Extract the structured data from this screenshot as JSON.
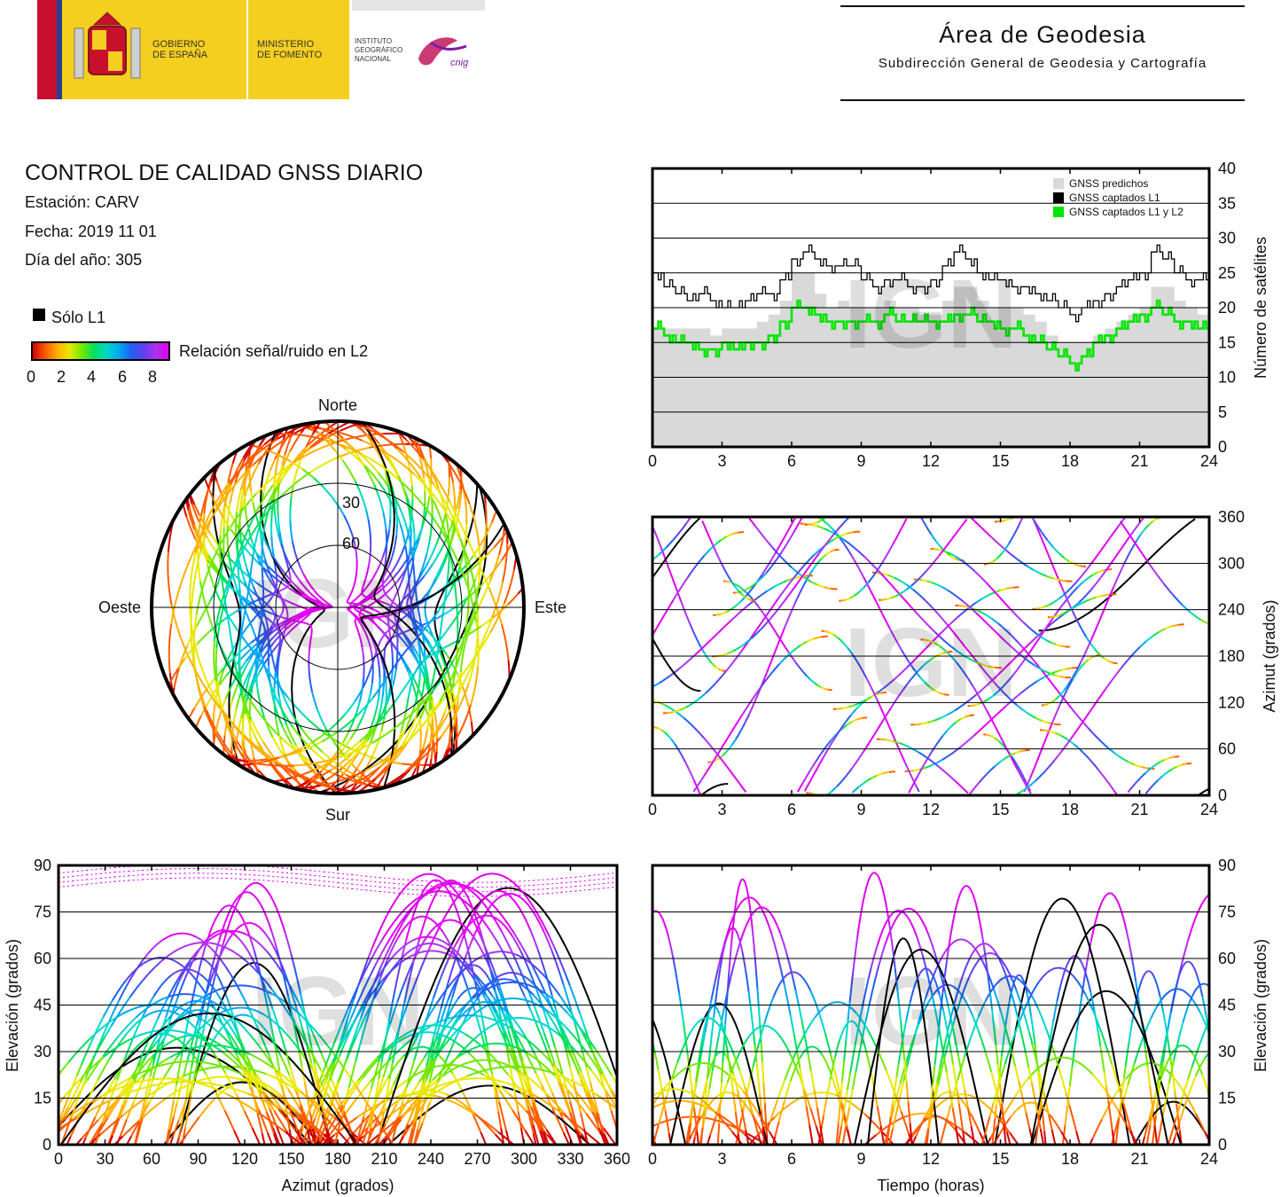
{
  "header": {
    "gobierno": "GOBIERNO\nDE ESPAÑA",
    "ministerio": "MINISTERIO\nDE FOMENTO",
    "instituto": "INSTITUTO\nGEOGRÁFICO\nNACIONAL",
    "cnig": "cnig",
    "area_title": "Área de Geodesia",
    "area_subtitle": "Subdirección General de Geodesia y Cartografía"
  },
  "info": {
    "title": "CONTROL DE CALIDAD GNSS DIARIO",
    "station": "Estación: CARV",
    "date": "Fecha: 2019 11 01",
    "doy": "Día del año: 305",
    "solo_l1": "Sólo L1",
    "colorbar_label": "Relación señal/ruido en L2",
    "colorbar_ticks": [
      "0",
      "2",
      "4",
      "6",
      "8"
    ]
  },
  "watermark": "IGN",
  "colors": {
    "predicted": "#d9d9d9",
    "captured_l1": "#000000",
    "captured_l1l2": "#00e600",
    "snr_scale": [
      "#d00000",
      "#ff5a00",
      "#ffb000",
      "#e8e800",
      "#70e800",
      "#00e060",
      "#00d8c8",
      "#00a8f0",
      "#2060f0",
      "#6040f0",
      "#b030f0",
      "#e000f0"
    ]
  },
  "chart_data": [
    {
      "type": "area",
      "legend": [
        "GNSS predichos",
        "GNSS captados L1",
        "GNSS captados L1 y L2"
      ],
      "legend_position": "top-right",
      "ylabel": "Número de satélites",
      "ylim": [
        0,
        40
      ],
      "yticks": [
        "0",
        "5",
        "10",
        "15",
        "20",
        "25",
        "30",
        "35",
        "40"
      ],
      "xlim": [
        0,
        24
      ],
      "xticks": [
        "0",
        "3",
        "6",
        "9",
        "12",
        "15",
        "18",
        "21",
        "24"
      ],
      "grid": true,
      "x": [
        0,
        0.5,
        1,
        1.5,
        2,
        2.5,
        3,
        3.5,
        4,
        4.5,
        5,
        5.5,
        6,
        6.5,
        7,
        7.5,
        8,
        8.5,
        9,
        9.5,
        10,
        10.5,
        11,
        11.5,
        12,
        12.5,
        13,
        13.5,
        14,
        14.5,
        15,
        15.5,
        16,
        16.5,
        17,
        17.5,
        18,
        18.5,
        19,
        19.5,
        20,
        20.5,
        21,
        21.5,
        22,
        22.5,
        23,
        23.5,
        24
      ],
      "series": [
        {
          "name": "GNSS predichos",
          "values": [
            17,
            17,
            17,
            17,
            17,
            16,
            17,
            17,
            17,
            18,
            19,
            21,
            25,
            25,
            22,
            20,
            21,
            20,
            20,
            20,
            21,
            20,
            20,
            19,
            19,
            21,
            23,
            23,
            21,
            20,
            20,
            20,
            19,
            18,
            16,
            15,
            15,
            15,
            16,
            17,
            18,
            19,
            20,
            23,
            23,
            21,
            20,
            19,
            19
          ]
        },
        {
          "name": "GNSS captados L1",
          "values": [
            25,
            23,
            22,
            21,
            22,
            21,
            20,
            20,
            21,
            22,
            22,
            24,
            27,
            28,
            27,
            26,
            26,
            26,
            24,
            23,
            24,
            24,
            23,
            23,
            24,
            26,
            28,
            27,
            25,
            24,
            24,
            23,
            23,
            22,
            21,
            20,
            19,
            20,
            21,
            22,
            23,
            24,
            25,
            28,
            27,
            25,
            24,
            24,
            23
          ]
        },
        {
          "name": "GNSS captados L1 y L2",
          "values": [
            17,
            16,
            15,
            15,
            14,
            14,
            15,
            14,
            15,
            15,
            16,
            18,
            20,
            20,
            19,
            18,
            18,
            18,
            18,
            18,
            19,
            18,
            18,
            18,
            18,
            18,
            19,
            19,
            18,
            18,
            17,
            17,
            16,
            15,
            14,
            13,
            12,
            13,
            15,
            16,
            17,
            18,
            19,
            20,
            19,
            18,
            18,
            17,
            17
          ]
        }
      ]
    },
    {
      "type": "scatter",
      "ylabel": "Azimut (grados)",
      "ylim": [
        0,
        360
      ],
      "yticks": [
        "0",
        "60",
        "120",
        "180",
        "240",
        "300",
        "360"
      ],
      "xlim": [
        0,
        24
      ],
      "xticks": [
        "0",
        "3",
        "6",
        "9",
        "12",
        "15",
        "18",
        "21",
        "24"
      ],
      "grid": true
    },
    {
      "type": "scatter",
      "xlabel": "Azimut (grados)",
      "ylabel": "Elevación (grados)",
      "xlim": [
        0,
        360
      ],
      "ylim": [
        0,
        90
      ],
      "xticks": [
        "0",
        "30",
        "60",
        "90",
        "120",
        "150",
        "180",
        "210",
        "240",
        "270",
        "300",
        "330",
        "360"
      ],
      "yticks": [
        "0",
        "15",
        "30",
        "45",
        "60",
        "75",
        "90"
      ],
      "grid": true
    },
    {
      "type": "scatter",
      "xlabel": "Tiempo (horas)",
      "ylabel": "Elevación (grados)",
      "xlim": [
        0,
        24
      ],
      "ylim": [
        0,
        90
      ],
      "xticks": [
        "0",
        "3",
        "6",
        "9",
        "12",
        "15",
        "18",
        "21",
        "24"
      ],
      "yticks": [
        "0",
        "15",
        "30",
        "45",
        "60",
        "75",
        "90"
      ],
      "grid": true
    },
    {
      "type": "scatter",
      "subtype": "polar skyplot",
      "labels": {
        "north": "Norte",
        "south": "Sur",
        "east": "Este",
        "west": "Oeste"
      },
      "rings": [
        "30",
        "60"
      ]
    }
  ]
}
